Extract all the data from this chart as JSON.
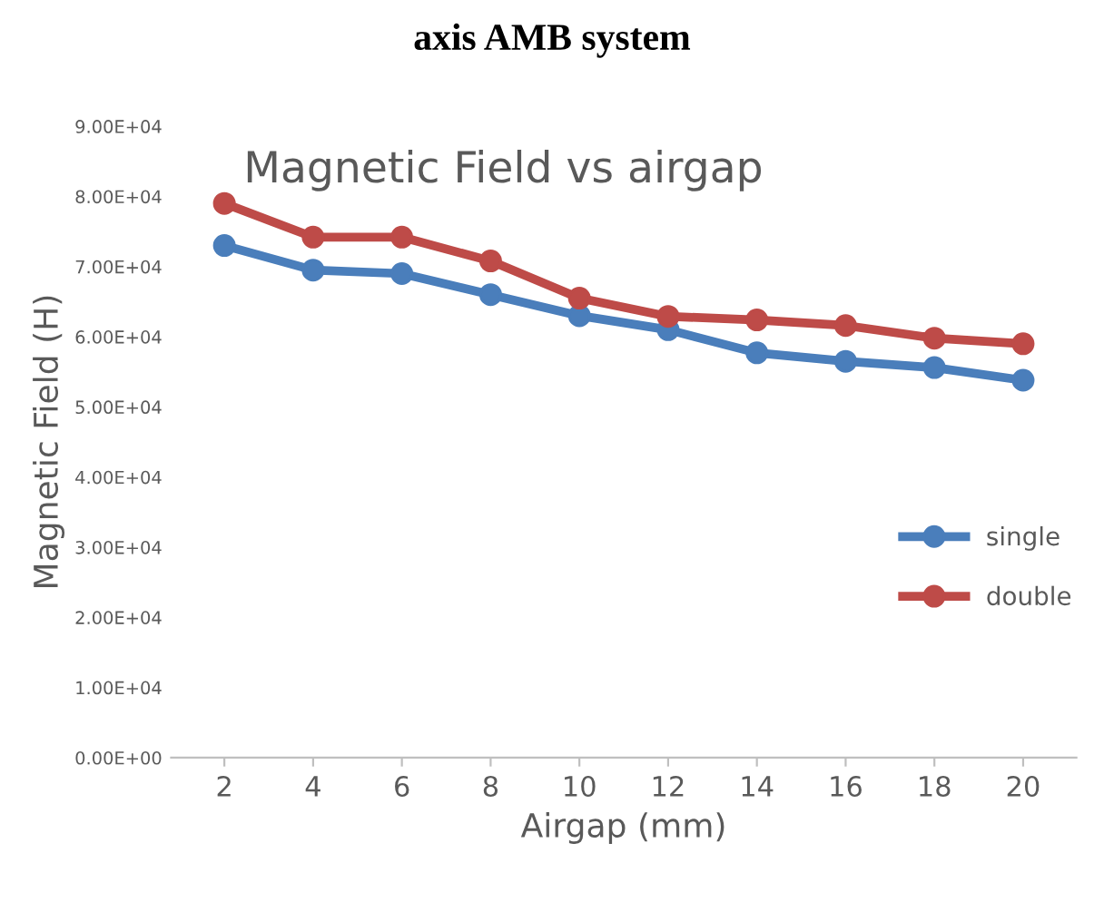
{
  "chart_data": {
    "type": "line",
    "title": "Magnetic Field vs airgap",
    "annotations": [
      "axis AMB system"
    ],
    "xlabel": "Airgap (mm)",
    "ylabel": "Magnetic Field (H)",
    "categories": [
      "2",
      "4",
      "6",
      "8",
      "10",
      "12",
      "14",
      "16",
      "18",
      "20"
    ],
    "series": [
      {
        "name": "single",
        "color": "#4a7ebb",
        "values": [
          73000,
          69500,
          69000,
          66000,
          63000,
          61000,
          57700,
          56500,
          55600,
          53800
        ]
      },
      {
        "name": "double",
        "color": "#be4b48",
        "values": [
          79000,
          74200,
          74200,
          70800,
          65500,
          62900,
          62400,
          61600,
          59800,
          59000
        ]
      }
    ],
    "ylim": [
      0,
      90000
    ],
    "yticks": [
      {
        "value": 0,
        "label": "0.00E+00"
      },
      {
        "value": 10000,
        "label": "1.00E+04"
      },
      {
        "value": 20000,
        "label": "2.00E+04"
      },
      {
        "value": 30000,
        "label": "3.00E+04"
      },
      {
        "value": 40000,
        "label": "4.00E+04"
      },
      {
        "value": 50000,
        "label": "5.00E+04"
      },
      {
        "value": 60000,
        "label": "6.00E+04"
      },
      {
        "value": 70000,
        "label": "7.00E+04"
      },
      {
        "value": 80000,
        "label": "8.00E+04"
      },
      {
        "value": 90000,
        "label": "9.00E+04"
      }
    ],
    "legend": "right",
    "marker": "circle",
    "line_style": "solid",
    "grid": false
  }
}
